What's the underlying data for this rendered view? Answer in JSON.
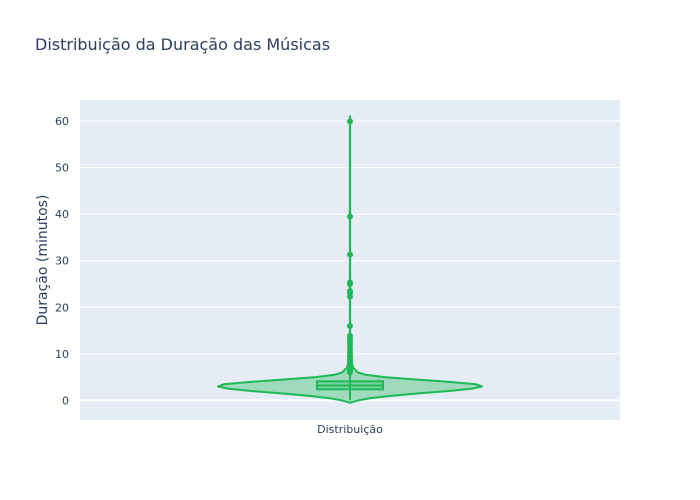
{
  "chart_data": {
    "type": "violin",
    "title": "Distribuição da Duração das Músicas",
    "xlabel": "",
    "ylabel": "Duração (minutos)",
    "categories": [
      "Distribuição"
    ],
    "ylim": [
      -4.2,
      64.5
    ],
    "yticks": [
      0,
      10,
      20,
      30,
      40,
      50,
      60
    ],
    "grid": true,
    "colors": {
      "plot_bg": "#e5ecf6",
      "grid": "#ffffff",
      "violin_line": "#1db954",
      "violin_fill": "rgba(29,185,84,0.35)",
      "text": "#2a3f5f"
    },
    "box": {
      "min": 0.0,
      "q1": 2.4,
      "median": 3.2,
      "q3": 4.1,
      "whisker_high": 6.6
    },
    "density_profile": [
      [
        -0.5,
        0.0
      ],
      [
        0.0,
        0.06
      ],
      [
        0.5,
        0.16
      ],
      [
        1.0,
        0.32
      ],
      [
        1.5,
        0.52
      ],
      [
        2.0,
        0.74
      ],
      [
        2.5,
        0.92
      ],
      [
        3.0,
        1.0
      ],
      [
        3.5,
        0.95
      ],
      [
        4.0,
        0.74
      ],
      [
        4.5,
        0.5
      ],
      [
        5.0,
        0.26
      ],
      [
        5.5,
        0.12
      ],
      [
        6.0,
        0.06
      ],
      [
        7.0,
        0.025
      ],
      [
        8.0,
        0.012
      ],
      [
        9.0,
        0.007
      ],
      [
        10.0,
        0.004
      ],
      [
        12.0,
        0.002
      ],
      [
        15.0,
        0.001
      ],
      [
        20.0,
        0.0005
      ],
      [
        40.0,
        0.0005
      ],
      [
        60.0,
        0.0005
      ],
      [
        61.0,
        0.0
      ]
    ],
    "outliers": [
      6.0,
      6.4,
      6.8,
      7.2,
      7.6,
      8.0,
      8.5,
      9.0,
      9.5,
      10.2,
      11.0,
      11.8,
      12.5,
      13.2,
      13.9,
      16.0,
      22.3,
      23.1,
      23.5,
      25.0,
      25.3,
      31.3,
      39.5,
      59.9
    ]
  }
}
